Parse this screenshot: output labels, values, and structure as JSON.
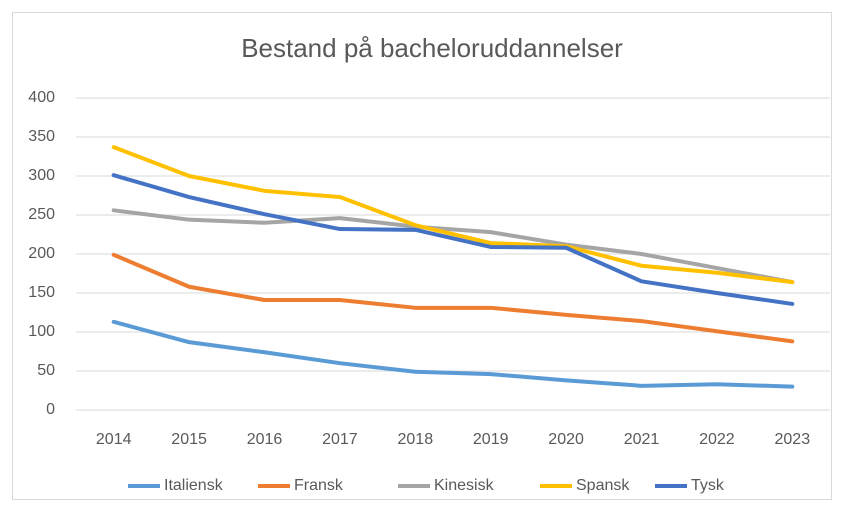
{
  "chart_data": {
    "type": "line",
    "title": "Bestand på bacheloruddannelser",
    "categories": [
      "2014",
      "2015",
      "2016",
      "2017",
      "2018",
      "2019",
      "2020",
      "2021",
      "2022",
      "2023"
    ],
    "series": [
      {
        "name": "Italiensk",
        "color": "#5b9bd5",
        "values": [
          113,
          87,
          74,
          60,
          49,
          46,
          38,
          31,
          33,
          30
        ]
      },
      {
        "name": "Fransk",
        "color": "#ed7d31",
        "values": [
          199,
          158,
          141,
          141,
          131,
          131,
          122,
          114,
          101,
          88
        ]
      },
      {
        "name": "Kinesisk",
        "color": "#a5a5a5",
        "values": [
          256,
          244,
          240,
          246,
          235,
          228,
          212,
          200,
          182,
          164
        ]
      },
      {
        "name": "Spansk",
        "color": "#ffc000",
        "values": [
          337,
          300,
          281,
          273,
          237,
          214,
          210,
          185,
          176,
          164
        ]
      },
      {
        "name": "Tysk",
        "color": "#4472c4",
        "values": [
          301,
          273,
          251,
          232,
          231,
          209,
          208,
          165,
          150,
          136
        ]
      }
    ],
    "ylim": [
      0,
      400
    ],
    "yticks": [
      0,
      50,
      100,
      150,
      200,
      250,
      300,
      350,
      400
    ],
    "grid": true,
    "legend": "bottom"
  }
}
